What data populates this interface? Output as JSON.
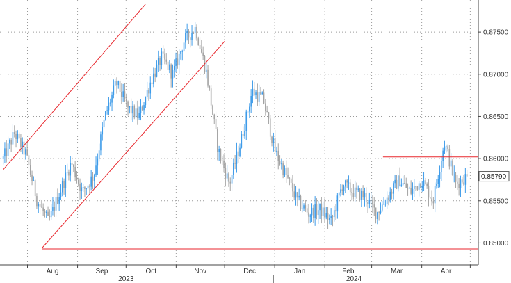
{
  "chart_data": {
    "type": "candlestick",
    "colors": {
      "up": "#3d9be9",
      "down": "#a3a3a3",
      "trendline": "#e8262c",
      "grid": "#9a9a9a",
      "axis": "#444444"
    },
    "y_axis": {
      "side": "right",
      "ylim": [
        0.8474,
        0.8788
      ],
      "ticks": [
        0.85,
        0.855,
        0.86,
        0.865,
        0.87,
        0.875
      ],
      "tick_labels": [
        "0.85000",
        "0.85500",
        "0.86000",
        "0.86500",
        "0.87000",
        "0.87500"
      ]
    },
    "x_axis": {
      "months": [
        "Aug",
        "Sep",
        "Oct",
        "Nov",
        "Dec",
        "Jan",
        "Feb",
        "Mar",
        "Apr"
      ],
      "years": [
        "2023",
        "2024"
      ]
    },
    "last_price_label": "0.85790",
    "last_price": 0.8579,
    "grid": true,
    "trendlines": [
      {
        "name": "upper-channel",
        "from": [
          "2023-07-17",
          0.8587
        ],
        "to": [
          "2023-10-13",
          0.8783
        ]
      },
      {
        "name": "lower-channel",
        "from": [
          "2023-08-10",
          0.8494
        ],
        "to": [
          "2023-12-01",
          0.8739
        ]
      },
      {
        "name": "support",
        "from": [
          "2023-08-10",
          0.8493
        ],
        "to": [
          "2024-05-03",
          0.8493
        ]
      },
      {
        "name": "resistance",
        "from": [
          "2024-03-08",
          0.8602
        ],
        "to": [
          "2024-05-03",
          0.8602
        ]
      }
    ],
    "price_path": [
      [
        "2023-07-17",
        0.86
      ],
      [
        "2023-07-24",
        0.863
      ],
      [
        "2023-07-31",
        0.8605
      ],
      [
        "2023-08-07",
        0.855
      ],
      [
        "2023-08-14",
        0.8525
      ],
      [
        "2023-08-21",
        0.856
      ],
      [
        "2023-08-28",
        0.8595
      ],
      [
        "2023-09-04",
        0.856
      ],
      [
        "2023-09-11",
        0.858
      ],
      [
        "2023-09-18",
        0.865
      ],
      [
        "2023-09-25",
        0.869
      ],
      [
        "2023-10-02",
        0.866
      ],
      [
        "2023-10-09",
        0.865
      ],
      [
        "2023-10-16",
        0.869
      ],
      [
        "2023-10-23",
        0.872
      ],
      [
        "2023-10-30",
        0.87
      ],
      [
        "2023-11-06",
        0.874
      ],
      [
        "2023-11-13",
        0.8755
      ],
      [
        "2023-11-20",
        0.87
      ],
      [
        "2023-11-27",
        0.861
      ],
      [
        "2023-12-04",
        0.857
      ],
      [
        "2023-12-11",
        0.862
      ],
      [
        "2023-12-18",
        0.868
      ],
      [
        "2023-12-25",
        0.867
      ],
      [
        "2024-01-01",
        0.861
      ],
      [
        "2024-01-08",
        0.858
      ],
      [
        "2024-01-15",
        0.855
      ],
      [
        "2024-01-22",
        0.8535
      ],
      [
        "2024-01-29",
        0.854
      ],
      [
        "2024-02-05",
        0.8525
      ],
      [
        "2024-02-12",
        0.857
      ],
      [
        "2024-02-19",
        0.856
      ],
      [
        "2024-02-26",
        0.8555
      ],
      [
        "2024-03-04",
        0.8535
      ],
      [
        "2024-03-11",
        0.8555
      ],
      [
        "2024-03-18",
        0.8575
      ],
      [
        "2024-03-25",
        0.856
      ],
      [
        "2024-04-01",
        0.8575
      ],
      [
        "2024-04-08",
        0.855
      ],
      [
        "2024-04-15",
        0.862
      ],
      [
        "2024-04-22",
        0.857
      ],
      [
        "2024-04-29",
        0.8579
      ]
    ]
  }
}
